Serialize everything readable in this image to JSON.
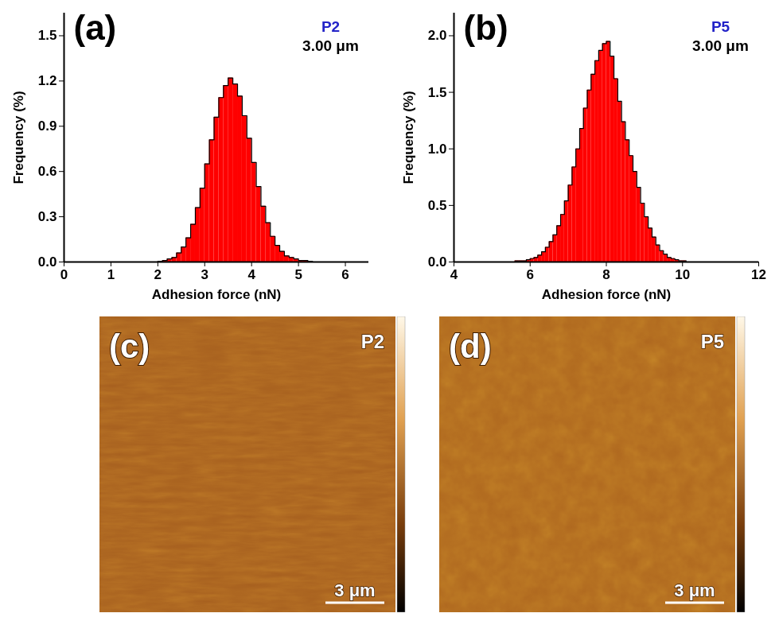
{
  "chart_data": [
    {
      "type": "histogram",
      "panel_label": "(a)",
      "annotations": [
        {
          "text": "P2",
          "color": "#2323c8"
        },
        {
          "text": "3.00 μm",
          "color": "#000000"
        }
      ],
      "x_label": "Adhesion force (nN)",
      "y_label": "Frequency (%)",
      "color": "#ff0000",
      "bins": [
        2.0,
        2.1,
        2.2,
        2.3,
        2.4,
        2.5,
        2.6,
        2.7,
        2.8,
        2.9,
        3.0,
        3.1,
        3.2,
        3.3,
        3.4,
        3.5,
        3.6,
        3.7,
        3.8,
        3.9,
        4.0,
        4.1,
        4.2,
        4.3,
        4.4,
        4.5,
        4.6,
        4.7,
        4.8,
        4.9,
        5.0,
        5.1,
        5.2,
        5.3
      ],
      "values": [
        0.005,
        0.01,
        0.02,
        0.03,
        0.06,
        0.1,
        0.16,
        0.25,
        0.36,
        0.49,
        0.65,
        0.81,
        0.96,
        1.09,
        1.17,
        1.22,
        1.18,
        1.1,
        0.97,
        0.82,
        0.66,
        0.5,
        0.37,
        0.26,
        0.17,
        0.11,
        0.07,
        0.04,
        0.03,
        0.02,
        0.01,
        0.01,
        0.005
      ],
      "xlim": [
        0,
        6.5
      ],
      "xticks": [
        0,
        1,
        2,
        3,
        4,
        5,
        6
      ],
      "ylim": [
        0,
        1.65
      ],
      "yticks": [
        {
          "value": 0,
          "label": "0.0"
        },
        0.3,
        0.6,
        0.9,
        1.2,
        1.5
      ],
      "grid": false
    },
    {
      "type": "histogram",
      "panel_label": "(b)",
      "annotations": [
        {
          "text": "P5",
          "color": "#2323c8"
        },
        {
          "text": "3.00 μm",
          "color": "#000000"
        }
      ],
      "x_label": "Adhesion force (nN)",
      "y_label": "Frequency (%)",
      "color": "#ff0000",
      "bins": [
        5.6,
        5.7,
        5.8,
        5.9,
        6.0,
        6.1,
        6.2,
        6.3,
        6.4,
        6.5,
        6.6,
        6.7,
        6.8,
        6.9,
        7.0,
        7.1,
        7.2,
        7.3,
        7.4,
        7.5,
        7.6,
        7.7,
        7.8,
        7.9,
        8.0,
        8.1,
        8.2,
        8.3,
        8.4,
        8.5,
        8.6,
        8.7,
        8.8,
        8.9,
        9.0,
        9.1,
        9.2,
        9.3,
        9.4,
        9.5,
        9.6,
        9.7,
        9.8,
        9.9,
        10.0,
        10.1
      ],
      "values": [
        0.01,
        0.01,
        0.01,
        0.02,
        0.03,
        0.04,
        0.06,
        0.09,
        0.13,
        0.18,
        0.24,
        0.32,
        0.42,
        0.54,
        0.68,
        0.84,
        1.0,
        1.18,
        1.36,
        1.52,
        1.66,
        1.78,
        1.87,
        1.93,
        1.95,
        1.82,
        1.62,
        1.42,
        1.24,
        1.08,
        0.94,
        0.8,
        0.66,
        0.52,
        0.4,
        0.3,
        0.22,
        0.15,
        0.1,
        0.07,
        0.04,
        0.03,
        0.02,
        0.01,
        0.01
      ],
      "xlim": [
        4,
        12
      ],
      "xticks": [
        4,
        6,
        8,
        10,
        12
      ],
      "ylim": [
        0,
        2.2
      ],
      "yticks": [
        {
          "value": 0,
          "label": "0.0"
        },
        0.5,
        {
          "value": 1,
          "label": "1.0"
        },
        1.5,
        {
          "value": 2,
          "label": "2.0"
        }
      ],
      "grid": false
    }
  ],
  "images": [
    {
      "panel_label": "(c)",
      "sample": "P2",
      "scale_bar": "3 μm"
    },
    {
      "panel_label": "(d)",
      "sample": "P5",
      "scale_bar": "3 μm"
    }
  ]
}
